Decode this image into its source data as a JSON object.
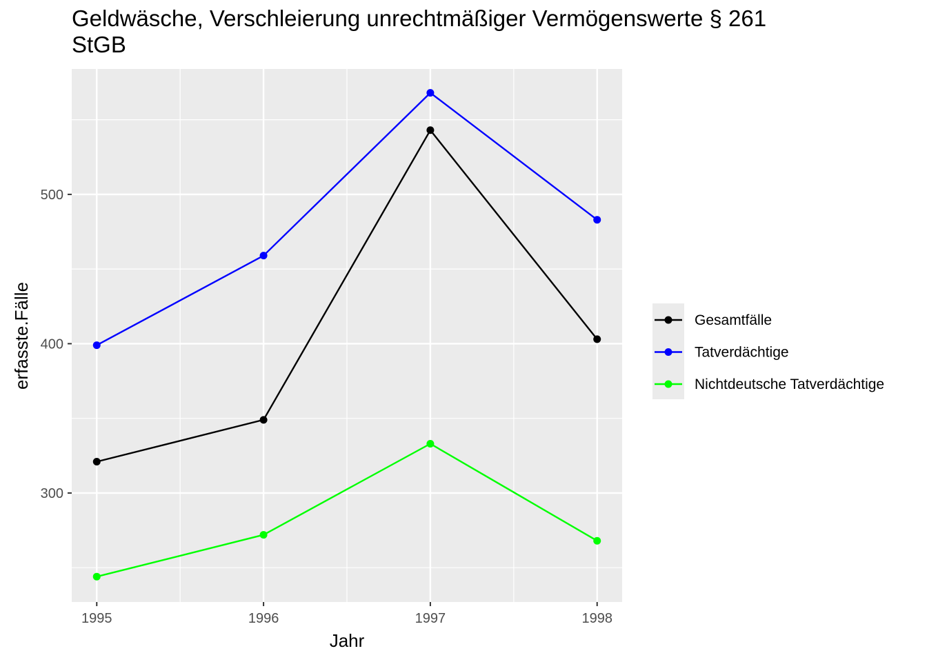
{
  "chart_data": {
    "type": "line",
    "title": "Geldwäsche, Verschleierung unrechtmäßiger Vermögenswerte § 261 StGB",
    "xlabel": "Jahr",
    "ylabel": "erfasste.Fälle",
    "x": [
      1995,
      1996,
      1997,
      1998
    ],
    "xlim": [
      1994.85,
      1998.15
    ],
    "ylim": [
      227,
      584
    ],
    "x_ticks": [
      "1995",
      "1996",
      "1997",
      "1998"
    ],
    "y_ticks": [
      300,
      400,
      500
    ],
    "grid": true,
    "legend_position": "right",
    "series": [
      {
        "name": "Gesamtfälle",
        "color": "#000000",
        "values": [
          321,
          349,
          543,
          403
        ]
      },
      {
        "name": "Tatverdächtige",
        "color": "#0000ff",
        "values": [
          399,
          459,
          568,
          483
        ]
      },
      {
        "name": "Nichtdeutsche Tatverdächtige",
        "color": "#00ff00",
        "values": [
          244,
          272,
          333,
          268
        ]
      }
    ]
  }
}
